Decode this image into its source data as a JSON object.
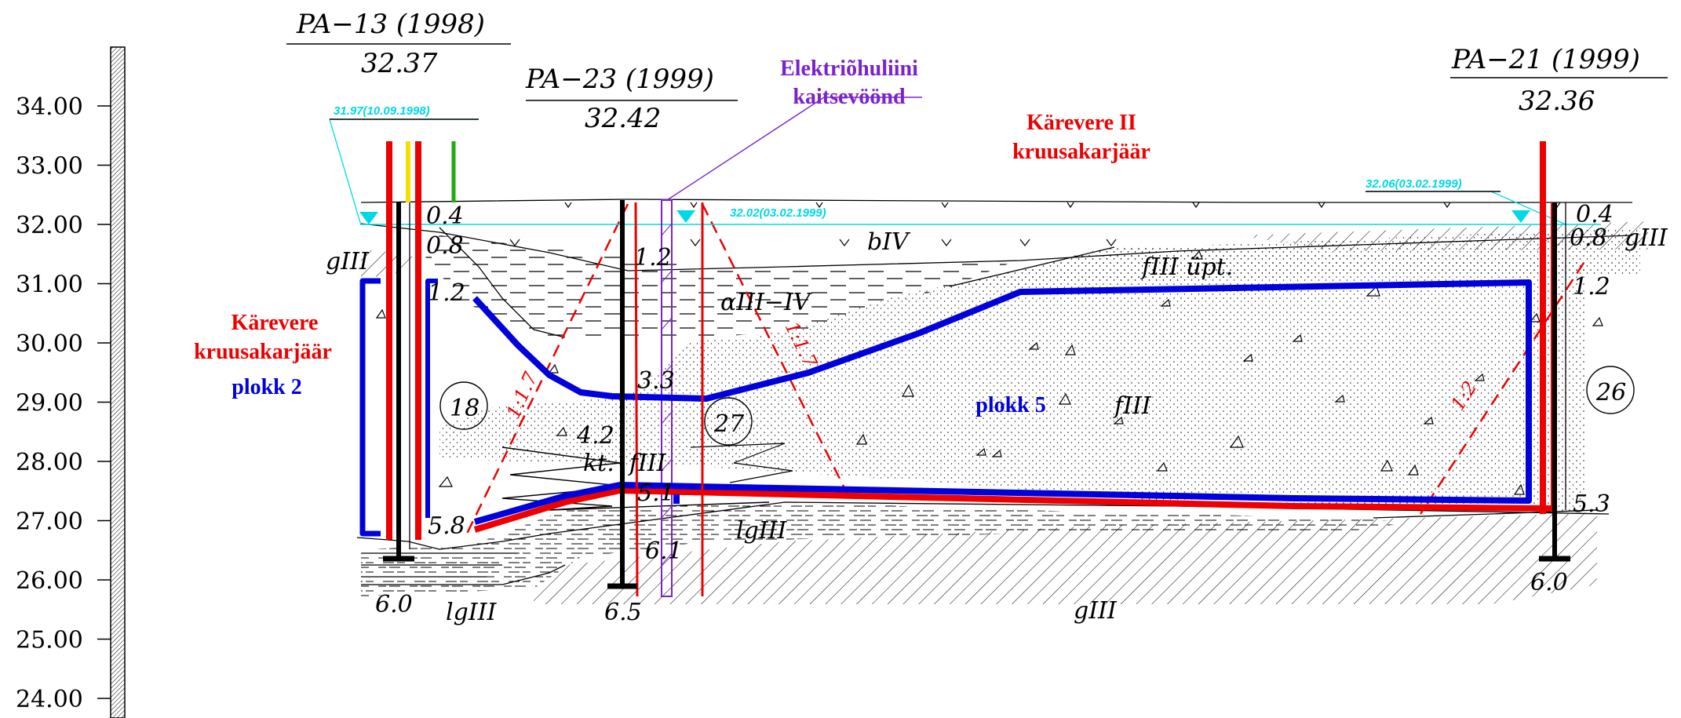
{
  "elevation_scale": {
    "ticks": [
      "34.00",
      "33.00",
      "32.00",
      "31.00",
      "30.00",
      "29.00",
      "28.00",
      "27.00",
      "26.00",
      "25.00",
      "24.00"
    ]
  },
  "boreholes": {
    "pa13": {
      "name": "PA−13 (1998)",
      "elevation": "32.37",
      "water": "31.97(10.09.1998)",
      "depths": [
        "0.4",
        "0.8",
        "1.2",
        "5.8",
        "6.0"
      ]
    },
    "pa23": {
      "name": "PA−23 (1999)",
      "elevation": "32.42",
      "water": "32.02(03.02.1999)",
      "depths": [
        "1.2",
        "3.3",
        "4.2",
        "5.1",
        "6.1",
        "6.5"
      ]
    },
    "pa21": {
      "name": "PA−21 (1999)",
      "elevation": "32.36",
      "water": "32.06(03.02.1999)",
      "depths": [
        "0.4",
        "0.8",
        "1.2",
        "5.3",
        "6.0"
      ]
    }
  },
  "labels": {
    "powerline": [
      "Elektriõhuliini",
      "kaitsevöönd"
    ],
    "quarry2": [
      "Kärevere II",
      "kruusakarjäär"
    ],
    "quarry1": [
      "Kärevere",
      "kruusakarjäär"
    ],
    "block2": "plokk 2",
    "block5": "plokk 5"
  },
  "geology": {
    "bIV": "bIV",
    "aIII_IV": "αIII−IV",
    "fIII_upt": "fIII üpt.",
    "fIII": "fIII",
    "kt_fIII": "kt.  fIII",
    "lgIII_a": "lgIII",
    "lgIII_b": "lgIII",
    "gIII_left": "gIII",
    "gIII_right": "gIII",
    "gIII_bottom": "gIII"
  },
  "slopes": [
    "1:1.7",
    "1:1.7",
    "1:2"
  ],
  "circles": [
    "18",
    "27",
    "26"
  ],
  "colors": {
    "extraction_limit": "#0000dd",
    "boundary": "#ee0000",
    "powerline": "#7a22cc",
    "water": "#00d8e8"
  }
}
